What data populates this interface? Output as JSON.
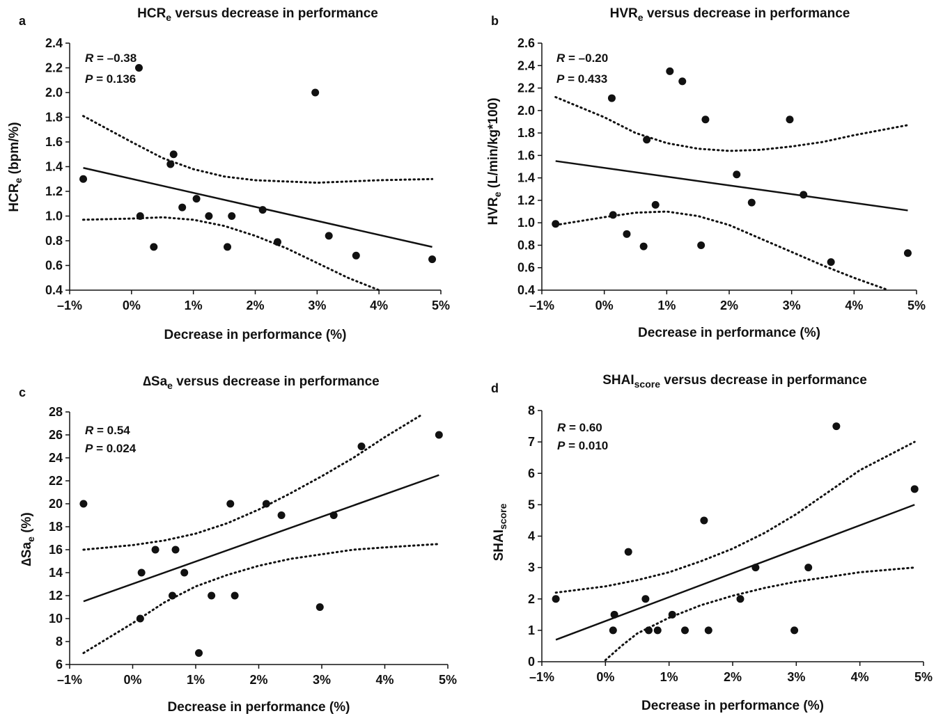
{
  "chart_data": [
    {
      "type": "scatter",
      "panel_letter": "a",
      "title": {
        "main": "HCR",
        "sub": "e",
        "rest": " versus decrease in performance"
      },
      "xlabel": "Decrease in performance (%)",
      "ylabel": {
        "main": "HCR",
        "sub": "e",
        "rest": " (bpm/%)"
      },
      "x_ticks": [
        "–1%",
        "0%",
        "1%",
        "2%",
        "3%",
        "4%",
        "5%"
      ],
      "y_ticks": [
        "0.4",
        "0.6",
        "0.8",
        "1.0",
        "1.2",
        "1.4",
        "1.6",
        "1.8",
        "2.0",
        "2.2",
        "2.4"
      ],
      "xlim": [
        -1,
        5
      ],
      "ylim": [
        0.4,
        2.4
      ],
      "stats": {
        "r_label": "R",
        "r_value": " = –0.38",
        "p_label": "P",
        "p_value": " = 0.136"
      },
      "points": [
        {
          "x": -0.78,
          "y": 1.3
        },
        {
          "x": 0.12,
          "y": 2.2
        },
        {
          "x": 0.14,
          "y": 1.0
        },
        {
          "x": 0.36,
          "y": 0.75
        },
        {
          "x": 0.63,
          "y": 1.42
        },
        {
          "x": 0.68,
          "y": 1.5
        },
        {
          "x": 0.82,
          "y": 1.07
        },
        {
          "x": 1.05,
          "y": 1.14
        },
        {
          "x": 1.25,
          "y": 1.0
        },
        {
          "x": 1.55,
          "y": 0.75
        },
        {
          "x": 1.62,
          "y": 1.0
        },
        {
          "x": 2.12,
          "y": 1.05
        },
        {
          "x": 2.36,
          "y": 0.79
        },
        {
          "x": 2.97,
          "y": 2.0
        },
        {
          "x": 3.19,
          "y": 0.84
        },
        {
          "x": 3.63,
          "y": 0.68
        },
        {
          "x": 4.86,
          "y": 0.65
        }
      ],
      "fit_line": [
        {
          "x": -0.78,
          "y": 1.39
        },
        {
          "x": 4.86,
          "y": 0.75
        }
      ],
      "ci_upper": [
        {
          "x": -0.78,
          "y": 1.81
        },
        {
          "x": 0.0,
          "y": 1.6
        },
        {
          "x": 0.5,
          "y": 1.47
        },
        {
          "x": 1.0,
          "y": 1.38
        },
        {
          "x": 1.5,
          "y": 1.32
        },
        {
          "x": 2.0,
          "y": 1.29
        },
        {
          "x": 2.5,
          "y": 1.28
        },
        {
          "x": 3.0,
          "y": 1.27
        },
        {
          "x": 3.5,
          "y": 1.28
        },
        {
          "x": 4.0,
          "y": 1.29
        },
        {
          "x": 4.86,
          "y": 1.3
        }
      ],
      "ci_lower": [
        {
          "x": -0.78,
          "y": 0.97
        },
        {
          "x": 0.0,
          "y": 0.98
        },
        {
          "x": 0.5,
          "y": 0.99
        },
        {
          "x": 1.0,
          "y": 0.97
        },
        {
          "x": 1.5,
          "y": 0.92
        },
        {
          "x": 2.0,
          "y": 0.84
        },
        {
          "x": 2.5,
          "y": 0.74
        },
        {
          "x": 3.0,
          "y": 0.62
        },
        {
          "x": 3.5,
          "y": 0.5
        },
        {
          "x": 4.0,
          "y": 0.4
        }
      ]
    },
    {
      "type": "scatter",
      "panel_letter": "b",
      "title": {
        "main": "HVR",
        "sub": "e",
        "rest": " versus decrease in performance"
      },
      "xlabel": "Decrease in performance (%)",
      "ylabel": {
        "main": "HVR",
        "sub": "e",
        "rest": " (L/min/kg*100)"
      },
      "x_ticks": [
        "–1%",
        "0%",
        "1%",
        "2%",
        "3%",
        "4%",
        "5%"
      ],
      "y_ticks": [
        "0.4",
        "0.6",
        "0.8",
        "1.0",
        "1.2",
        "1.4",
        "1.6",
        "1.8",
        "2.0",
        "2.2",
        "2.4",
        "2.6"
      ],
      "xlim": [
        -1,
        5
      ],
      "ylim": [
        0.4,
        2.6
      ],
      "stats": {
        "r_label": "R",
        "r_value": " = –0.20",
        "p_label": "P",
        "p_value": " = 0.433"
      },
      "points": [
        {
          "x": -0.78,
          "y": 0.99
        },
        {
          "x": 0.12,
          "y": 2.11
        },
        {
          "x": 0.14,
          "y": 1.07
        },
        {
          "x": 0.36,
          "y": 0.9
        },
        {
          "x": 0.63,
          "y": 0.79
        },
        {
          "x": 0.68,
          "y": 1.74
        },
        {
          "x": 0.82,
          "y": 1.16
        },
        {
          "x": 1.05,
          "y": 2.35
        },
        {
          "x": 1.25,
          "y": 2.26
        },
        {
          "x": 1.55,
          "y": 0.8
        },
        {
          "x": 1.62,
          "y": 1.92
        },
        {
          "x": 2.12,
          "y": 1.43
        },
        {
          "x": 2.36,
          "y": 1.18
        },
        {
          "x": 2.97,
          "y": 1.92
        },
        {
          "x": 3.19,
          "y": 1.25
        },
        {
          "x": 3.63,
          "y": 0.65
        },
        {
          "x": 4.86,
          "y": 0.73
        }
      ],
      "fit_line": [
        {
          "x": -0.78,
          "y": 1.55
        },
        {
          "x": 4.86,
          "y": 1.11
        }
      ],
      "ci_upper": [
        {
          "x": -0.78,
          "y": 2.12
        },
        {
          "x": 0.0,
          "y": 1.94
        },
        {
          "x": 0.5,
          "y": 1.8
        },
        {
          "x": 1.0,
          "y": 1.71
        },
        {
          "x": 1.5,
          "y": 1.66
        },
        {
          "x": 2.0,
          "y": 1.64
        },
        {
          "x": 2.5,
          "y": 1.65
        },
        {
          "x": 3.0,
          "y": 1.68
        },
        {
          "x": 3.5,
          "y": 1.72
        },
        {
          "x": 4.0,
          "y": 1.78
        },
        {
          "x": 4.86,
          "y": 1.87
        }
      ],
      "ci_lower": [
        {
          "x": -0.78,
          "y": 0.98
        },
        {
          "x": 0.0,
          "y": 1.05
        },
        {
          "x": 0.5,
          "y": 1.09
        },
        {
          "x": 1.0,
          "y": 1.1
        },
        {
          "x": 1.5,
          "y": 1.06
        },
        {
          "x": 2.0,
          "y": 0.98
        },
        {
          "x": 2.5,
          "y": 0.86
        },
        {
          "x": 3.0,
          "y": 0.74
        },
        {
          "x": 3.5,
          "y": 0.62
        },
        {
          "x": 4.0,
          "y": 0.51
        },
        {
          "x": 4.55,
          "y": 0.4
        }
      ]
    },
    {
      "type": "scatter",
      "panel_letter": "c",
      "title": {
        "main": "∆Sa",
        "sub": "e",
        "rest": " versus decrease in performance"
      },
      "xlabel": "Decrease in performance (%)",
      "ylabel": {
        "main": "∆Sa",
        "sub": "e",
        "rest": " (%)"
      },
      "x_ticks": [
        "–1%",
        "0%",
        "1%",
        "2%",
        "3%",
        "4%",
        "5%"
      ],
      "y_ticks": [
        "6",
        "8",
        "10",
        "12",
        "14",
        "16",
        "18",
        "20",
        "22",
        "24",
        "26",
        "28"
      ],
      "xlim": [
        -1,
        5
      ],
      "ylim": [
        6,
        28
      ],
      "stats": {
        "r_label": "R",
        "r_value": " = 0.54",
        "p_label": "P",
        "p_value": " = 0.024"
      },
      "points": [
        {
          "x": -0.78,
          "y": 20
        },
        {
          "x": 0.12,
          "y": 10
        },
        {
          "x": 0.14,
          "y": 14
        },
        {
          "x": 0.36,
          "y": 16
        },
        {
          "x": 0.63,
          "y": 12
        },
        {
          "x": 0.68,
          "y": 16
        },
        {
          "x": 0.82,
          "y": 14
        },
        {
          "x": 1.05,
          "y": 7
        },
        {
          "x": 1.25,
          "y": 12
        },
        {
          "x": 1.55,
          "y": 20
        },
        {
          "x": 1.62,
          "y": 12
        },
        {
          "x": 2.12,
          "y": 20
        },
        {
          "x": 2.36,
          "y": 19
        },
        {
          "x": 2.97,
          "y": 11
        },
        {
          "x": 3.19,
          "y": 19
        },
        {
          "x": 3.63,
          "y": 25
        },
        {
          "x": 4.86,
          "y": 26
        }
      ],
      "fit_line": [
        {
          "x": -0.78,
          "y": 11.5
        },
        {
          "x": 4.86,
          "y": 22.5
        }
      ],
      "ci_upper": [
        {
          "x": -0.78,
          "y": 16.0
        },
        {
          "x": 0.0,
          "y": 16.4
        },
        {
          "x": 0.5,
          "y": 16.8
        },
        {
          "x": 1.0,
          "y": 17.4
        },
        {
          "x": 1.5,
          "y": 18.3
        },
        {
          "x": 2.0,
          "y": 19.5
        },
        {
          "x": 2.5,
          "y": 20.9
        },
        {
          "x": 3.0,
          "y": 22.4
        },
        {
          "x": 3.5,
          "y": 24.0
        },
        {
          "x": 4.0,
          "y": 25.8
        },
        {
          "x": 4.6,
          "y": 27.8
        }
      ],
      "ci_lower": [
        {
          "x": -0.78,
          "y": 7.0
        },
        {
          "x": 0.0,
          "y": 9.6
        },
        {
          "x": 0.5,
          "y": 11.4
        },
        {
          "x": 1.0,
          "y": 12.8
        },
        {
          "x": 1.5,
          "y": 13.8
        },
        {
          "x": 2.0,
          "y": 14.6
        },
        {
          "x": 2.5,
          "y": 15.2
        },
        {
          "x": 3.0,
          "y": 15.6
        },
        {
          "x": 3.5,
          "y": 16.0
        },
        {
          "x": 4.0,
          "y": 16.2
        },
        {
          "x": 4.86,
          "y": 16.5
        }
      ]
    },
    {
      "type": "scatter",
      "panel_letter": "d",
      "title": {
        "main": "SHAI",
        "sub": "score",
        "rest": " versus decrease in performance"
      },
      "xlabel": "Decrease in performance (%)",
      "ylabel": {
        "main": "SHAI",
        "sub": "score",
        "rest": ""
      },
      "x_ticks": [
        "–1%",
        "0%",
        "1%",
        "2%",
        "3%",
        "4%",
        "5%"
      ],
      "y_ticks": [
        "0",
        "1",
        "2",
        "3",
        "4",
        "5",
        "6",
        "7",
        "8"
      ],
      "xlim": [
        -1,
        5
      ],
      "ylim": [
        0,
        8
      ],
      "stats": {
        "r_label": "R",
        "r_value": " = 0.60",
        "p_label": "P",
        "p_value": " = 0.010"
      },
      "points": [
        {
          "x": -0.78,
          "y": 2.0
        },
        {
          "x": 0.12,
          "y": 1.0
        },
        {
          "x": 0.14,
          "y": 1.5
        },
        {
          "x": 0.36,
          "y": 3.5
        },
        {
          "x": 0.63,
          "y": 2.0
        },
        {
          "x": 0.68,
          "y": 1.0
        },
        {
          "x": 0.82,
          "y": 1.0
        },
        {
          "x": 1.05,
          "y": 1.5
        },
        {
          "x": 1.25,
          "y": 1.0
        },
        {
          "x": 1.55,
          "y": 4.5
        },
        {
          "x": 1.62,
          "y": 1.0
        },
        {
          "x": 2.12,
          "y": 2.0
        },
        {
          "x": 2.36,
          "y": 3.0
        },
        {
          "x": 2.97,
          "y": 1.0
        },
        {
          "x": 3.19,
          "y": 3.0
        },
        {
          "x": 3.63,
          "y": 7.5
        },
        {
          "x": 4.86,
          "y": 5.5
        }
      ],
      "fit_line": [
        {
          "x": -0.78,
          "y": 0.7
        },
        {
          "x": 4.86,
          "y": 5.0
        }
      ],
      "ci_upper": [
        {
          "x": -0.78,
          "y": 2.2
        },
        {
          "x": 0.0,
          "y": 2.4
        },
        {
          "x": 0.5,
          "y": 2.6
        },
        {
          "x": 1.0,
          "y": 2.85
        },
        {
          "x": 1.5,
          "y": 3.2
        },
        {
          "x": 2.0,
          "y": 3.6
        },
        {
          "x": 2.5,
          "y": 4.1
        },
        {
          "x": 3.0,
          "y": 4.7
        },
        {
          "x": 3.5,
          "y": 5.4
        },
        {
          "x": 4.0,
          "y": 6.1
        },
        {
          "x": 4.86,
          "y": 7.0
        }
      ],
      "ci_lower": [
        {
          "x": 0.0,
          "y": 0.05
        },
        {
          "x": 0.25,
          "y": 0.5
        },
        {
          "x": 0.5,
          "y": 0.9
        },
        {
          "x": 1.0,
          "y": 1.4
        },
        {
          "x": 1.5,
          "y": 1.8
        },
        {
          "x": 2.0,
          "y": 2.1
        },
        {
          "x": 2.5,
          "y": 2.35
        },
        {
          "x": 3.0,
          "y": 2.55
        },
        {
          "x": 3.5,
          "y": 2.7
        },
        {
          "x": 4.0,
          "y": 2.85
        },
        {
          "x": 4.86,
          "y": 3.0
        }
      ]
    }
  ]
}
